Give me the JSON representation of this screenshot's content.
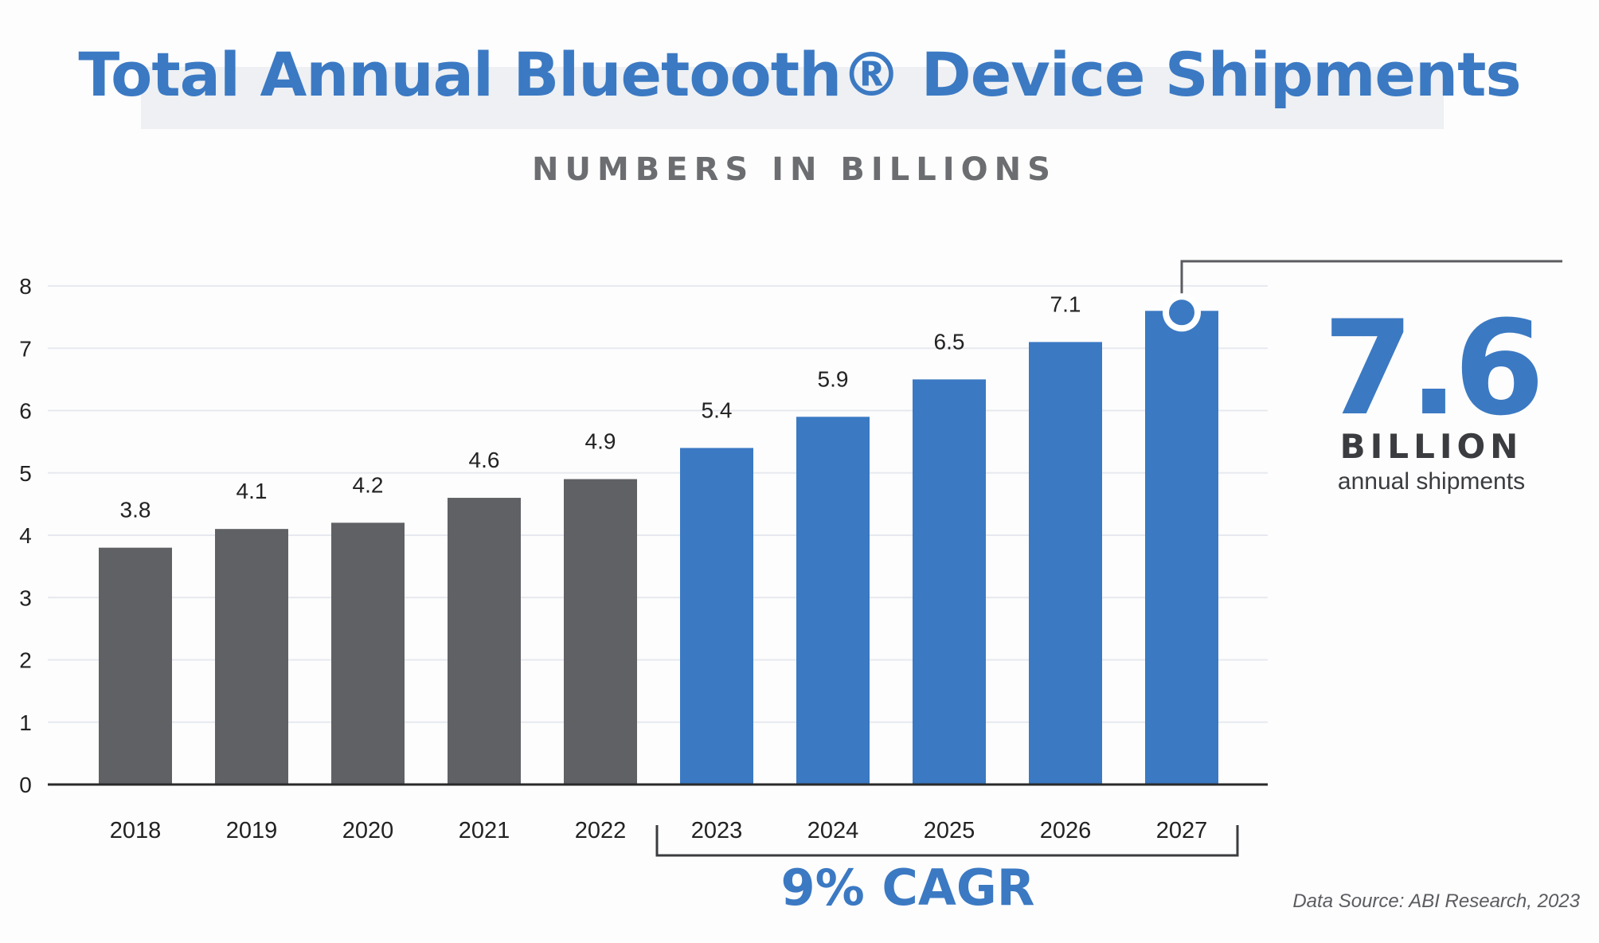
{
  "header": {
    "title": "Total Annual Bluetooth® Device Shipments",
    "subtitle": "NUMBERS IN BILLIONS"
  },
  "callout": {
    "number": "7.6",
    "unit": "BILLION",
    "caption": "annual shipments"
  },
  "cagr_label": "9% CAGR",
  "source": "Data Source: ABI Research, 2023",
  "colors": {
    "historical": "#5f6164",
    "forecast": "#3b79c3",
    "axis": "#2a2a2a",
    "grid": "#e6e9ee"
  },
  "chart_data": {
    "type": "bar",
    "title": "Total Annual Bluetooth® Device Shipments",
    "ylabel": "NUMBERS IN BILLIONS",
    "xlabel": "",
    "ylim": [
      0,
      8
    ],
    "yticks": [
      0,
      1,
      2,
      3,
      4,
      5,
      6,
      7,
      8
    ],
    "grid": true,
    "categories": [
      "2018",
      "2019",
      "2020",
      "2021",
      "2022",
      "2023",
      "2024",
      "2025",
      "2026",
      "2027"
    ],
    "values": [
      3.8,
      4.1,
      4.2,
      4.6,
      4.9,
      5.4,
      5.9,
      6.5,
      7.1,
      7.6
    ],
    "labels": [
      "3.8",
      "4.1",
      "4.2",
      "4.6",
      "4.9",
      "5.4",
      "5.9",
      "6.5",
      "7.1",
      ""
    ],
    "forecast_from": "2023"
  }
}
